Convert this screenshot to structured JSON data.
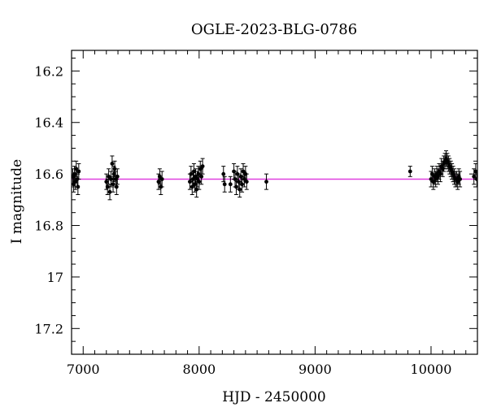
{
  "chart_data": {
    "type": "scatter",
    "title": "OGLE-2023-BLG-0786",
    "xlabel": "HJD - 2450000",
    "ylabel": "I magnitude",
    "xlim": [
      6900,
      10400
    ],
    "ylim": [
      17.3,
      16.12
    ],
    "y_inverted": true,
    "grid": false,
    "x_ticks": [
      7000,
      8000,
      9000,
      10000
    ],
    "x_tick_labels": [
      "7000",
      "8000",
      "9000",
      "10000"
    ],
    "y_ticks": [
      16.2,
      16.4,
      16.6,
      16.8,
      17.0,
      17.2
    ],
    "y_tick_labels": [
      "16.2",
      "16.4",
      "16.6",
      "16.8",
      "17",
      "17.2"
    ],
    "baseline_mag": 16.62,
    "colors": {
      "points": "#000000",
      "model": "#e040e0",
      "axes": "#000000"
    },
    "series": [
      {
        "points": [
          [
            6910,
            16.61,
            0.03
          ],
          [
            6918,
            16.64,
            0.03
          ],
          [
            6925,
            16.6,
            0.03
          ],
          [
            6932,
            16.63,
            0.03
          ],
          [
            6940,
            16.58,
            0.03
          ],
          [
            6948,
            16.62,
            0.03
          ],
          [
            6955,
            16.65,
            0.03
          ],
          [
            6962,
            16.59,
            0.03
          ],
          [
            7200,
            16.63,
            0.03
          ],
          [
            7210,
            16.65,
            0.03
          ],
          [
            7220,
            16.61,
            0.03
          ],
          [
            7230,
            16.67,
            0.03
          ],
          [
            7240,
            16.62,
            0.03
          ],
          [
            7250,
            16.56,
            0.03
          ],
          [
            7258,
            16.64,
            0.03
          ],
          [
            7265,
            16.6,
            0.03
          ],
          [
            7272,
            16.58,
            0.03
          ],
          [
            7280,
            16.62,
            0.03
          ],
          [
            7288,
            16.65,
            0.03
          ],
          [
            7295,
            16.61,
            0.03
          ],
          [
            7650,
            16.63,
            0.03
          ],
          [
            7660,
            16.61,
            0.03
          ],
          [
            7670,
            16.65,
            0.03
          ],
          [
            7680,
            16.62,
            0.03
          ],
          [
            7920,
            16.63,
            0.03
          ],
          [
            7930,
            16.6,
            0.03
          ],
          [
            7940,
            16.65,
            0.03
          ],
          [
            7948,
            16.62,
            0.03
          ],
          [
            7955,
            16.59,
            0.03
          ],
          [
            7962,
            16.64,
            0.03
          ],
          [
            7970,
            16.61,
            0.03
          ],
          [
            7978,
            16.66,
            0.03
          ],
          [
            7985,
            16.62,
            0.03
          ],
          [
            7993,
            16.6,
            0.03
          ],
          [
            8000,
            16.63,
            0.03
          ],
          [
            8010,
            16.58,
            0.03
          ],
          [
            8020,
            16.61,
            0.03
          ],
          [
            8030,
            16.57,
            0.03
          ],
          [
            8210,
            16.6,
            0.03
          ],
          [
            8220,
            16.64,
            0.03
          ],
          [
            8270,
            16.64,
            0.03
          ],
          [
            8300,
            16.59,
            0.03
          ],
          [
            8310,
            16.62,
            0.03
          ],
          [
            8320,
            16.65,
            0.03
          ],
          [
            8330,
            16.6,
            0.03
          ],
          [
            8340,
            16.63,
            0.03
          ],
          [
            8350,
            16.66,
            0.03
          ],
          [
            8360,
            16.61,
            0.03
          ],
          [
            8370,
            16.64,
            0.03
          ],
          [
            8380,
            16.59,
            0.03
          ],
          [
            8390,
            16.62,
            0.03
          ],
          [
            8400,
            16.6,
            0.03
          ],
          [
            8410,
            16.63,
            0.03
          ],
          [
            8580,
            16.63,
            0.03
          ],
          [
            9820,
            16.59,
            0.02
          ],
          [
            10000,
            16.62,
            0.03
          ],
          [
            10010,
            16.6,
            0.03
          ],
          [
            10020,
            16.63,
            0.03
          ],
          [
            10030,
            16.61,
            0.03
          ],
          [
            10040,
            16.62,
            0.03
          ],
          [
            10050,
            16.6,
            0.03
          ],
          [
            10060,
            16.61,
            0.03
          ],
          [
            10070,
            16.59,
            0.03
          ],
          [
            10080,
            16.6,
            0.03
          ],
          [
            10090,
            16.57,
            0.03
          ],
          [
            10100,
            16.58,
            0.03
          ],
          [
            10110,
            16.56,
            0.03
          ],
          [
            10120,
            16.55,
            0.03
          ],
          [
            10130,
            16.54,
            0.03
          ],
          [
            10140,
            16.55,
            0.03
          ],
          [
            10150,
            16.56,
            0.03
          ],
          [
            10160,
            16.57,
            0.03
          ],
          [
            10170,
            16.58,
            0.03
          ],
          [
            10180,
            16.59,
            0.03
          ],
          [
            10190,
            16.6,
            0.03
          ],
          [
            10200,
            16.61,
            0.03
          ],
          [
            10210,
            16.62,
            0.03
          ],
          [
            10220,
            16.62,
            0.03
          ],
          [
            10230,
            16.63,
            0.03
          ],
          [
            10240,
            16.61,
            0.03
          ],
          [
            10250,
            16.62,
            0.03
          ],
          [
            10370,
            16.61,
            0.03
          ],
          [
            10385,
            16.59,
            0.03
          ],
          [
            10395,
            16.62,
            0.03
          ]
        ]
      }
    ],
    "model_curve": [
      [
        6900,
        16.62
      ],
      [
        9995,
        16.62
      ],
      [
        10025,
        16.615
      ],
      [
        10050,
        16.6
      ],
      [
        10075,
        16.585
      ],
      [
        10100,
        16.565
      ],
      [
        10120,
        16.55
      ],
      [
        10135,
        16.545
      ],
      [
        10150,
        16.555
      ],
      [
        10175,
        16.575
      ],
      [
        10200,
        16.6
      ],
      [
        10225,
        16.615
      ],
      [
        10250,
        16.62
      ],
      [
        10400,
        16.62
      ]
    ]
  }
}
